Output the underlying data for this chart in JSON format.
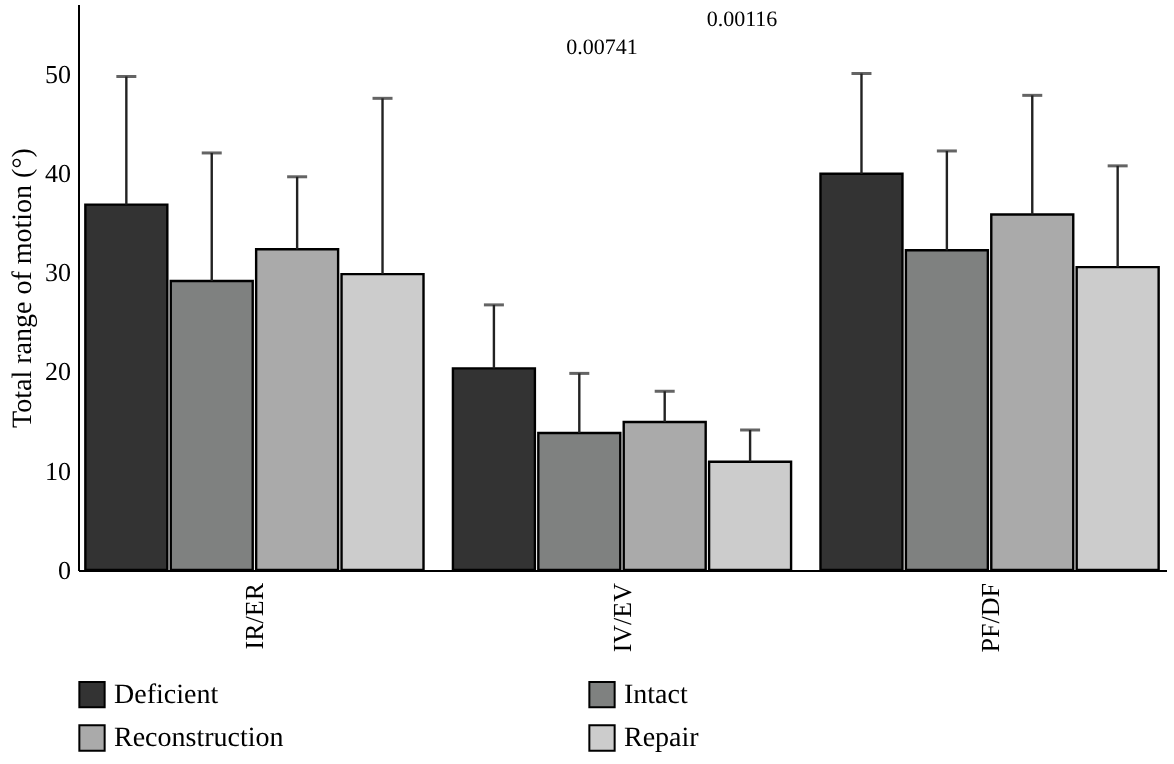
{
  "chart_data": {
    "type": "bar",
    "ylabel": "Total range of motion (°)",
    "categories": [
      "IR/ER",
      "IV/EV",
      "PF/DF"
    ],
    "ylim": [
      0,
      57
    ],
    "yticks": [
      0,
      10,
      20,
      30,
      40,
      50
    ],
    "legend": "bottom",
    "grid": false,
    "annotations": [
      "0.00741",
      "0.00116"
    ],
    "series": [
      {
        "name": "Deficient",
        "color": "#333333",
        "values": [
          36.8,
          20.3,
          39.9
        ],
        "errors": [
          [
            36.8,
            49.7
          ],
          [
            20.3,
            26.7
          ],
          [
            39.9,
            50.0
          ]
        ]
      },
      {
        "name": "Intact",
        "color": "#7f8180",
        "values": [
          29.1,
          13.8,
          32.2
        ],
        "errors": [
          [
            29.1,
            42.0
          ],
          [
            13.8,
            19.8
          ],
          [
            32.2,
            42.2
          ]
        ]
      },
      {
        "name": "Reconstruction",
        "color": "#aaaaaa",
        "values": [
          32.3,
          14.9,
          35.8
        ],
        "errors": [
          [
            32.3,
            39.6
          ],
          [
            14.9,
            18.0
          ],
          [
            35.8,
            47.8
          ]
        ]
      },
      {
        "name": "Repair",
        "color": "#cccccc",
        "values": [
          29.8,
          10.9,
          30.5
        ],
        "errors": [
          [
            29.8,
            47.5
          ],
          [
            10.9,
            14.1
          ],
          [
            30.5,
            40.7
          ]
        ]
      }
    ]
  }
}
